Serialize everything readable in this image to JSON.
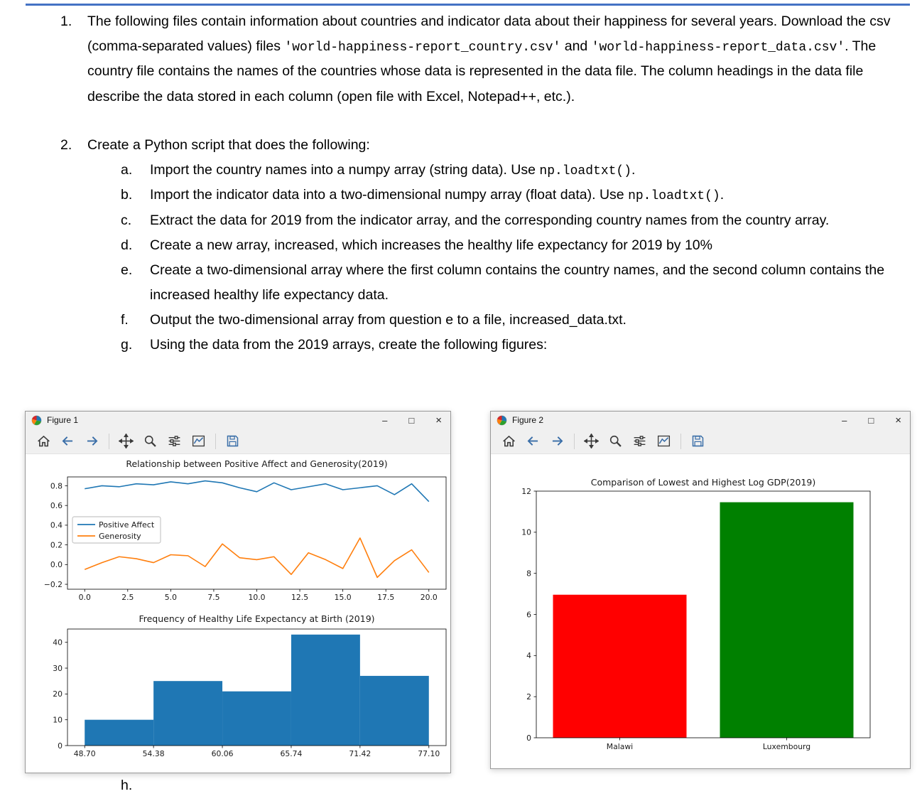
{
  "colors": {
    "top_rule": "#4472c4",
    "window_chrome": "#f0f0f0",
    "mpl_blue": "#1f77b4",
    "mpl_orange": "#ff7f0e",
    "bar_red": "#ff0000",
    "bar_green": "#008000"
  },
  "document": {
    "item1": {
      "m": "1.",
      "t1": "The following files contain information about countries and indicator data about their happiness for several years.  Download the csv (comma-separated values) files ",
      "c1": "'world-happiness-report_country.csv'",
      "t2": " and ",
      "c2": "'world-happiness-report_data.csv'",
      "t3": ". The country file contains the names of the countries whose data is represented in the data file.  The column headings in the data file describe the data stored in each column (open file with Excel, Notepad++, etc.)."
    },
    "item2": {
      "m": "2.",
      "t": "Create a Python script that does the following:",
      "subitems": [
        {
          "m": "a.",
          "t1": "Import the country names into a numpy array (string data). Use ",
          "c": "np.loadtxt()",
          "t2": "."
        },
        {
          "m": "b.",
          "t1": "Import the indicator data into a two-dimensional numpy array (float data). Use ",
          "c": "np.loadtxt()",
          "t2": "."
        },
        {
          "m": "c.",
          "t1": "Extract the data for 2019 from the indicator array, and the corresponding country names from the country array.",
          "c": "",
          "t2": ""
        },
        {
          "m": "d.",
          "t1": "Create a new array, increased, which increases the healthy life expectancy for 2019 by 10%",
          "c": "",
          "t2": ""
        },
        {
          "m": "e.",
          "t1": "Create a two-dimensional array where the first column contains the country names, and the second column contains the increased healthy life expectancy data.",
          "c": "",
          "t2": ""
        },
        {
          "m": "f.",
          "t1": "Output the two-dimensional array from question e to a file, increased_data.txt.",
          "c": "",
          "t2": ""
        },
        {
          "m": "g.",
          "t1": "Using the data from the 2019 arrays, create the following figures:",
          "c": "",
          "t2": ""
        }
      ]
    },
    "item_h": {
      "m": "h."
    }
  },
  "figure1": {
    "title": "Figure 1",
    "controls": {
      "minimize": "–",
      "maximize": "□",
      "close": "×"
    }
  },
  "figure2": {
    "title": "Figure 2",
    "controls": {
      "minimize": "–",
      "maximize": "□",
      "close": "×"
    }
  },
  "toolbar": {
    "buttons": [
      "home-icon",
      "back-arrow-icon",
      "forward-arrow-icon",
      "pan-icon",
      "zoom-icon",
      "configure-subplots-icon",
      "edit-plot-icon",
      "save-icon"
    ]
  },
  "chart_data": [
    {
      "type": "line",
      "title": "Relationship between Positive Affect and Generosity(2019)",
      "xlabel": "",
      "ylabel": "",
      "grid": false,
      "legend_position": "center left",
      "x": [
        0,
        1,
        2,
        3,
        4,
        5,
        6,
        7,
        8,
        9,
        10,
        11,
        12,
        13,
        14,
        15,
        16,
        17,
        18,
        19,
        20
      ],
      "series": [
        {
          "name": "Positive Affect",
          "color": "#1f77b4",
          "values": [
            0.77,
            0.8,
            0.79,
            0.82,
            0.81,
            0.84,
            0.82,
            0.85,
            0.83,
            0.78,
            0.74,
            0.83,
            0.76,
            0.79,
            0.82,
            0.76,
            0.78,
            0.8,
            0.71,
            0.82,
            0.64
          ]
        },
        {
          "name": "Generosity",
          "color": "#ff7f0e",
          "values": [
            -0.05,
            0.02,
            0.08,
            0.06,
            0.02,
            0.1,
            0.09,
            -0.02,
            0.21,
            0.07,
            0.05,
            0.08,
            -0.1,
            0.12,
            0.05,
            -0.04,
            0.27,
            -0.13,
            0.04,
            0.15,
            -0.08
          ]
        }
      ],
      "xlim": [
        -1,
        21
      ],
      "ylim": [
        -0.25,
        0.89
      ],
      "xticks": [
        0,
        2.5,
        5,
        7.5,
        10,
        12.5,
        15,
        17.5,
        20
      ],
      "xtick_labels": [
        "0.0",
        "2.5",
        "5.0",
        "7.5",
        "10.0",
        "12.5",
        "15.0",
        "17.5",
        "20.0"
      ],
      "yticks": [
        -0.2,
        0,
        0.2,
        0.4,
        0.6,
        0.8
      ],
      "ytick_labels": [
        "−0.2",
        "0.0",
        "0.2",
        "0.4",
        "0.6",
        "0.8"
      ]
    },
    {
      "type": "histogram",
      "title": "Frequency of Healthy Life Expectancy at Birth (2019)",
      "xlabel": "",
      "ylabel": "",
      "grid": false,
      "bar_color": "#1f77b4",
      "bin_edges": [
        48.7,
        54.38,
        60.06,
        65.74,
        71.42,
        77.1
      ],
      "counts": [
        10,
        25,
        21,
        43,
        27
      ],
      "xlim": [
        47.28,
        78.52
      ],
      "ylim": [
        0,
        45.15
      ],
      "xticks": [
        48.7,
        54.38,
        60.06,
        65.74,
        71.42,
        77.1
      ],
      "xtick_labels": [
        "48.70",
        "54.38",
        "60.06",
        "65.74",
        "71.42",
        "77.10"
      ],
      "yticks": [
        0,
        10,
        20,
        30,
        40
      ],
      "ytick_labels": [
        "0",
        "10",
        "20",
        "30",
        "40"
      ]
    },
    {
      "type": "bar",
      "title": "Comparison of Lowest and Highest Log GDP(2019)",
      "xlabel": "",
      "ylabel": "",
      "grid": false,
      "categories": [
        "Malawi",
        "Luxembourg"
      ],
      "values": [
        6.96,
        11.46
      ],
      "colors": [
        "#ff0000",
        "#008000"
      ],
      "bar_width": 0.8,
      "xlim": [
        -0.5,
        1.5
      ],
      "ylim": [
        0,
        12
      ],
      "yticks": [
        0,
        2,
        4,
        6,
        8,
        10,
        12
      ],
      "ytick_labels": [
        "0",
        "2",
        "4",
        "6",
        "8",
        "10",
        "12"
      ]
    }
  ]
}
